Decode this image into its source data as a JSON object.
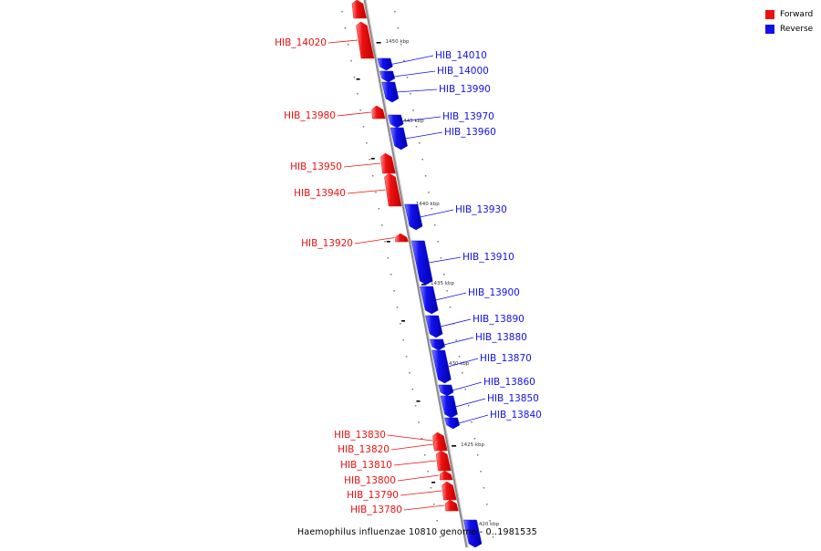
{
  "colors": {
    "forward": "#ee1111",
    "reverse": "#1111ee",
    "axis": "#999999"
  },
  "legend": [
    {
      "label": "Forward",
      "color": "#ee1111"
    },
    {
      "label": "Reverse",
      "color": "#1111ee"
    }
  ],
  "caption": "Haemophilus influenzae 10810 genome - 0..1981535",
  "ticks": [
    "1450 kbp",
    "1445 kbp",
    "1440 kbp",
    "1435 kbp",
    "1430 kbp",
    "1425 kbp",
    "1420 kbp"
  ],
  "genes": {
    "forward": [
      "HIB_14020",
      "HIB_13980",
      "HIB_13950",
      "HIB_13940",
      "HIB_13920",
      "HIB_13830",
      "HIB_13820",
      "HIB_13810",
      "HIB_13800",
      "HIB_13790",
      "HIB_13780"
    ],
    "reverse": [
      "HIB_14010",
      "HIB_14000",
      "HIB_13990",
      "HIB_13970",
      "HIB_13960",
      "HIB_13930",
      "HIB_13910",
      "HIB_13900",
      "HIB_13890",
      "HIB_13880",
      "HIB_13870",
      "HIB_13860",
      "HIB_13850",
      "HIB_13840"
    ]
  }
}
